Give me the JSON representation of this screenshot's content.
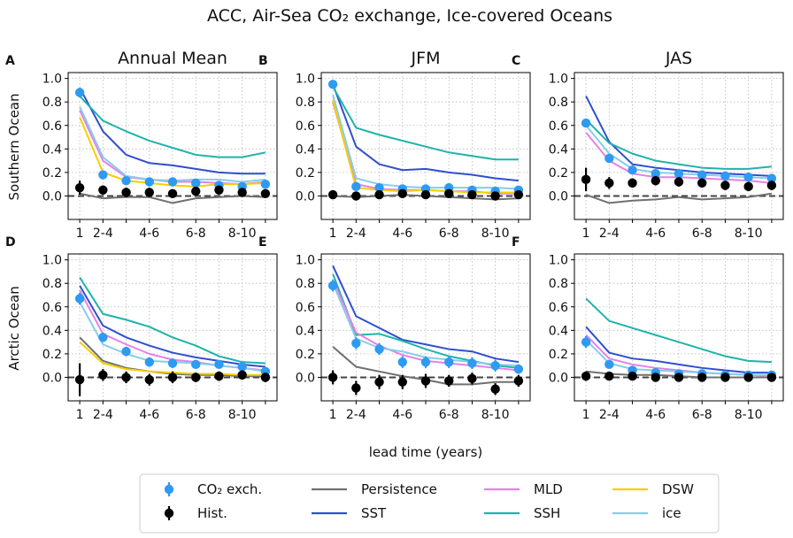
{
  "figure": {
    "title": "ACC, Air-Sea CO₂ exchange, Ice-covered Oceans",
    "xlabel": "lead time (years)",
    "row_labels": [
      "Southern Ocean",
      "Arctic Ocean"
    ],
    "col_titles": [
      "Annual Mean",
      "JFM",
      "JAS"
    ]
  },
  "legend": {
    "items": [
      {
        "key": "co2",
        "label": "CO₂ exch.",
        "kind": "errpoint",
        "color": "#2e9af2"
      },
      {
        "key": "hist",
        "label": "Hist.",
        "kind": "errpoint",
        "color": "#000000"
      },
      {
        "key": "persistence",
        "label": "Persistence",
        "kind": "line",
        "color": "#707070"
      },
      {
        "key": "sst",
        "label": "SST",
        "kind": "line",
        "color": "#2f4fcf"
      },
      {
        "key": "mld",
        "label": "MLD",
        "kind": "line",
        "color": "#e680e6"
      },
      {
        "key": "ssh",
        "label": "SSH",
        "kind": "line",
        "color": "#1fb3aa"
      },
      {
        "key": "dsw",
        "label": "DSW",
        "kind": "line",
        "color": "#f5cf00"
      },
      {
        "key": "ice",
        "label": "ice",
        "kind": "line",
        "color": "#86cde8"
      }
    ]
  },
  "chart_data": [
    {
      "type": "line",
      "panel": "A",
      "title": "Annual Mean",
      "ylabel": "Southern Ocean",
      "xlabel": "",
      "x": [
        1,
        2,
        3,
        4,
        5,
        6,
        7,
        8,
        9
      ],
      "xtick_labels": [
        "1",
        "2-4",
        "",
        "4-6",
        "",
        "6-8",
        "",
        "8-10",
        ""
      ],
      "xlim": [
        0.5,
        9.5
      ],
      "ylim": [
        -0.2,
        1.05
      ],
      "yticks": [
        0.0,
        0.2,
        0.4,
        0.6,
        0.8,
        1.0
      ],
      "grid": true,
      "series": [
        {
          "name": "Persistence",
          "key": "persistence",
          "values": [
            0.02,
            -0.02,
            -0.01,
            -0.01,
            -0.06,
            -0.02,
            -0.01,
            0.0,
            -0.01
          ]
        },
        {
          "name": "SST",
          "key": "sst",
          "values": [
            0.92,
            0.55,
            0.35,
            0.28,
            0.26,
            0.23,
            0.2,
            0.19,
            0.19
          ]
        },
        {
          "name": "SSH",
          "key": "ssh",
          "values": [
            0.85,
            0.64,
            0.55,
            0.47,
            0.41,
            0.35,
            0.33,
            0.33,
            0.37
          ]
        },
        {
          "name": "MLD",
          "key": "mld",
          "values": [
            0.73,
            0.3,
            0.16,
            0.14,
            0.12,
            0.12,
            0.11,
            0.1,
            0.12
          ]
        },
        {
          "name": "ice",
          "key": "ice",
          "values": [
            0.76,
            0.33,
            0.17,
            0.14,
            0.13,
            0.14,
            0.14,
            0.12,
            0.14
          ]
        },
        {
          "name": "DSW",
          "key": "dsw",
          "values": [
            0.67,
            0.2,
            0.13,
            0.11,
            0.09,
            0.08,
            0.1,
            0.1,
            0.11
          ]
        }
      ],
      "errpoints": [
        {
          "name": "CO₂ exch.",
          "key": "co2",
          "values": [
            0.88,
            0.18,
            0.13,
            0.12,
            0.12,
            0.11,
            0.09,
            0.08,
            0.1
          ],
          "err": [
            0.04,
            0.02,
            0.02,
            0.03,
            0.02,
            0.02,
            0.02,
            0.02,
            0.02
          ]
        },
        {
          "name": "Hist.",
          "key": "hist",
          "values": [
            0.07,
            0.05,
            0.03,
            0.03,
            0.02,
            0.04,
            0.05,
            0.03,
            0.02
          ],
          "err": [
            0.06,
            0.04,
            0.04,
            0.04,
            0.03,
            0.03,
            0.04,
            0.03,
            0.03
          ]
        }
      ]
    },
    {
      "type": "line",
      "panel": "B",
      "title": "JFM",
      "ylabel": "",
      "xlabel": "",
      "x": [
        1,
        2,
        3,
        4,
        5,
        6,
        7,
        8,
        9
      ],
      "xtick_labels": [
        "1",
        "2-4",
        "",
        "4-6",
        "",
        "6-8",
        "",
        "8-10",
        ""
      ],
      "xlim": [
        0.5,
        9.5
      ],
      "ylim": [
        -0.2,
        1.05
      ],
      "yticks": [
        0.0,
        0.2,
        0.4,
        0.6,
        0.8,
        1.0
      ],
      "grid": true,
      "series": [
        {
          "name": "Persistence",
          "key": "persistence",
          "values": [
            0.0,
            -0.01,
            0.0,
            0.01,
            0.0,
            -0.01,
            -0.02,
            -0.03,
            -0.02
          ]
        },
        {
          "name": "SST",
          "key": "sst",
          "values": [
            0.95,
            0.42,
            0.27,
            0.22,
            0.23,
            0.2,
            0.18,
            0.15,
            0.13
          ]
        },
        {
          "name": "SSH",
          "key": "ssh",
          "values": [
            0.93,
            0.58,
            0.52,
            0.47,
            0.42,
            0.37,
            0.34,
            0.31,
            0.31
          ]
        },
        {
          "name": "MLD",
          "key": "mld",
          "values": [
            0.8,
            0.1,
            0.06,
            0.05,
            0.05,
            0.04,
            0.04,
            0.02,
            0.02
          ]
        },
        {
          "name": "ice",
          "key": "ice",
          "values": [
            0.86,
            0.15,
            0.1,
            0.08,
            0.07,
            0.07,
            0.07,
            0.07,
            0.06
          ]
        },
        {
          "name": "DSW",
          "key": "dsw",
          "values": [
            0.82,
            0.07,
            0.05,
            0.04,
            0.05,
            0.04,
            0.03,
            0.03,
            0.03
          ]
        }
      ],
      "errpoints": [
        {
          "name": "CO₂ exch.",
          "key": "co2",
          "values": [
            0.95,
            0.08,
            0.07,
            0.06,
            0.06,
            0.07,
            0.05,
            0.04,
            0.05
          ],
          "err": [
            0.03,
            0.02,
            0.02,
            0.02,
            0.02,
            0.02,
            0.02,
            0.02,
            0.02
          ]
        },
        {
          "name": "Hist.",
          "key": "hist",
          "values": [
            0.01,
            0.0,
            0.01,
            0.02,
            0.01,
            0.02,
            0.01,
            0.0,
            0.01
          ],
          "err": [
            0.03,
            0.02,
            0.03,
            0.02,
            0.02,
            0.02,
            0.02,
            0.02,
            0.02
          ]
        }
      ]
    },
    {
      "type": "line",
      "panel": "C",
      "title": "JAS",
      "ylabel": "",
      "xlabel": "",
      "x": [
        1,
        2,
        3,
        4,
        5,
        6,
        7,
        8,
        9
      ],
      "xtick_labels": [
        "1",
        "2-4",
        "",
        "4-6",
        "",
        "6-8",
        "",
        "8-10",
        ""
      ],
      "xlim": [
        0.5,
        9.5
      ],
      "ylim": [
        -0.2,
        1.05
      ],
      "yticks": [
        0.0,
        0.2,
        0.4,
        0.6,
        0.8,
        1.0
      ],
      "grid": true,
      "series": [
        {
          "name": "Persistence",
          "key": "persistence",
          "values": [
            0.01,
            -0.06,
            -0.04,
            -0.03,
            -0.01,
            -0.03,
            -0.02,
            -0.01,
            0.02
          ]
        },
        {
          "name": "SST",
          "key": "sst",
          "values": [
            0.85,
            0.46,
            0.27,
            0.24,
            0.22,
            0.2,
            0.19,
            0.18,
            0.17
          ]
        },
        {
          "name": "SSH",
          "key": "ssh",
          "values": [
            0.65,
            0.45,
            0.36,
            0.3,
            0.27,
            0.24,
            0.23,
            0.23,
            0.25
          ]
        },
        {
          "name": "MLD",
          "key": "mld",
          "values": [
            0.54,
            0.3,
            0.19,
            0.16,
            0.16,
            0.15,
            0.14,
            0.13,
            0.11
          ]
        },
        {
          "name": "ice",
          "key": "ice",
          "values": [
            0.6,
            0.36,
            0.23,
            0.2,
            0.19,
            0.18,
            0.17,
            0.16,
            0.15
          ]
        }
      ],
      "errpoints": [
        {
          "name": "CO₂ exch.",
          "key": "co2",
          "values": [
            0.62,
            0.32,
            0.22,
            0.19,
            0.19,
            0.18,
            0.17,
            0.16,
            0.15
          ],
          "err": [
            0.03,
            0.03,
            0.03,
            0.02,
            0.02,
            0.02,
            0.02,
            0.02,
            0.02
          ]
        },
        {
          "name": "Hist.",
          "key": "hist",
          "values": [
            0.14,
            0.11,
            0.11,
            0.13,
            0.12,
            0.11,
            0.09,
            0.08,
            0.09
          ],
          "err": [
            0.1,
            0.05,
            0.04,
            0.04,
            0.04,
            0.04,
            0.04,
            0.04,
            0.04
          ]
        }
      ]
    },
    {
      "type": "line",
      "panel": "D",
      "title": "",
      "ylabel": "Arctic Ocean",
      "xlabel": "lead time (years)",
      "x": [
        1,
        2,
        3,
        4,
        5,
        6,
        7,
        8,
        9
      ],
      "xtick_labels": [
        "1",
        "2-4",
        "",
        "4-6",
        "",
        "6-8",
        "",
        "8-10",
        ""
      ],
      "xlim": [
        0.5,
        9.5
      ],
      "ylim": [
        -0.2,
        1.05
      ],
      "yticks": [
        0.0,
        0.2,
        0.4,
        0.6,
        0.8,
        1.0
      ],
      "grid": true,
      "series": [
        {
          "name": "Persistence",
          "key": "persistence",
          "values": [
            0.34,
            0.14,
            0.08,
            0.05,
            0.03,
            0.02,
            0.02,
            0.01,
            0.01
          ]
        },
        {
          "name": "SST",
          "key": "sst",
          "values": [
            0.78,
            0.44,
            0.34,
            0.27,
            0.21,
            0.17,
            0.14,
            0.11,
            0.09
          ]
        },
        {
          "name": "SSH",
          "key": "ssh",
          "values": [
            0.85,
            0.54,
            0.49,
            0.43,
            0.34,
            0.27,
            0.18,
            0.13,
            0.12
          ]
        },
        {
          "name": "MLD",
          "key": "mld",
          "values": [
            0.74,
            0.37,
            0.28,
            0.2,
            0.15,
            0.13,
            0.1,
            0.08,
            0.06
          ]
        },
        {
          "name": "ice",
          "key": "ice",
          "values": [
            0.64,
            0.28,
            0.2,
            0.14,
            0.13,
            0.12,
            0.1,
            0.08,
            0.05
          ]
        },
        {
          "name": "DSW",
          "key": "dsw",
          "values": [
            0.3,
            0.12,
            0.07,
            0.05,
            0.04,
            0.03,
            0.03,
            0.02,
            0.02
          ]
        }
      ],
      "errpoints": [
        {
          "name": "CO₂ exch.",
          "key": "co2",
          "values": [
            0.67,
            0.34,
            0.22,
            0.13,
            0.12,
            0.11,
            0.11,
            0.09,
            0.05
          ],
          "err": [
            0.05,
            0.04,
            0.04,
            0.04,
            0.04,
            0.03,
            0.03,
            0.03,
            0.03
          ]
        },
        {
          "name": "Hist.",
          "key": "hist",
          "values": [
            -0.02,
            0.02,
            0.0,
            -0.02,
            0.0,
            0.0,
            0.01,
            0.02,
            0.0
          ],
          "err": [
            0.14,
            0.05,
            0.05,
            0.05,
            0.05,
            0.04,
            0.04,
            0.04,
            0.04
          ]
        }
      ]
    },
    {
      "type": "line",
      "panel": "E",
      "title": "",
      "ylabel": "",
      "xlabel": "lead time (years)",
      "x": [
        1,
        2,
        3,
        4,
        5,
        6,
        7,
        8,
        9
      ],
      "xtick_labels": [
        "1",
        "2-4",
        "",
        "4-6",
        "",
        "6-8",
        "",
        "8-10",
        ""
      ],
      "xlim": [
        0.5,
        9.5
      ],
      "ylim": [
        -0.2,
        1.05
      ],
      "yticks": [
        0.0,
        0.2,
        0.4,
        0.6,
        0.8,
        1.0
      ],
      "grid": true,
      "series": [
        {
          "name": "Persistence",
          "key": "persistence",
          "values": [
            0.26,
            0.09,
            0.05,
            0.01,
            -0.02,
            -0.06,
            -0.06,
            -0.04,
            -0.04
          ]
        },
        {
          "name": "SST",
          "key": "sst",
          "values": [
            0.95,
            0.52,
            0.42,
            0.32,
            0.28,
            0.24,
            0.22,
            0.16,
            0.13
          ]
        },
        {
          "name": "SSH",
          "key": "ssh",
          "values": [
            0.88,
            0.36,
            0.37,
            0.31,
            0.24,
            0.18,
            0.14,
            0.1,
            0.08
          ]
        },
        {
          "name": "MLD",
          "key": "mld",
          "values": [
            0.83,
            0.38,
            0.27,
            0.19,
            0.14,
            0.12,
            0.1,
            0.08,
            0.06
          ]
        },
        {
          "name": "ice",
          "key": "ice",
          "values": [
            0.8,
            0.33,
            0.25,
            0.22,
            0.17,
            0.15,
            0.13,
            0.11,
            0.1
          ]
        }
      ],
      "errpoints": [
        {
          "name": "CO₂ exch.",
          "key": "co2",
          "values": [
            0.78,
            0.29,
            0.24,
            0.13,
            0.13,
            0.13,
            0.12,
            0.1,
            0.07
          ],
          "err": [
            0.05,
            0.05,
            0.05,
            0.05,
            0.05,
            0.05,
            0.05,
            0.05,
            0.04
          ]
        },
        {
          "name": "Hist.",
          "key": "hist",
          "values": [
            0.0,
            -0.09,
            -0.04,
            -0.04,
            -0.03,
            -0.03,
            -0.01,
            -0.1,
            -0.03
          ],
          "err": [
            0.06,
            0.06,
            0.06,
            0.06,
            0.06,
            0.05,
            0.05,
            0.05,
            0.05
          ]
        }
      ]
    },
    {
      "type": "line",
      "panel": "F",
      "title": "",
      "ylabel": "",
      "xlabel": "lead time (years)",
      "x": [
        1,
        2,
        3,
        4,
        5,
        6,
        7,
        8,
        9
      ],
      "xtick_labels": [
        "1",
        "2-4",
        "",
        "4-6",
        "",
        "6-8",
        "",
        "8-10",
        ""
      ],
      "xlim": [
        0.5,
        9.5
      ],
      "ylim": [
        -0.2,
        1.05
      ],
      "yticks": [
        0.0,
        0.2,
        0.4,
        0.6,
        0.8,
        1.0
      ],
      "grid": true,
      "series": [
        {
          "name": "Persistence",
          "key": "persistence",
          "values": [
            0.05,
            0.03,
            0.02,
            0.02,
            0.01,
            0.0,
            0.0,
            0.0,
            0.0
          ]
        },
        {
          "name": "SST",
          "key": "sst",
          "values": [
            0.43,
            0.21,
            0.16,
            0.14,
            0.11,
            0.08,
            0.06,
            0.04,
            0.04
          ]
        },
        {
          "name": "SSH",
          "key": "ssh",
          "values": [
            0.67,
            0.48,
            0.42,
            0.36,
            0.3,
            0.24,
            0.18,
            0.14,
            0.13
          ]
        },
        {
          "name": "MLD",
          "key": "mld",
          "values": [
            0.36,
            0.16,
            0.11,
            0.08,
            0.06,
            0.04,
            0.03,
            0.02,
            0.01
          ]
        },
        {
          "name": "ice",
          "key": "ice",
          "values": [
            0.32,
            0.12,
            0.07,
            0.06,
            0.05,
            0.04,
            0.03,
            0.02,
            0.02
          ]
        }
      ],
      "errpoints": [
        {
          "name": "CO₂ exch.",
          "key": "co2",
          "values": [
            0.3,
            0.11,
            0.06,
            0.04,
            0.03,
            0.03,
            0.02,
            0.02,
            0.02
          ],
          "err": [
            0.05,
            0.03,
            0.03,
            0.03,
            0.02,
            0.02,
            0.02,
            0.02,
            0.02
          ]
        },
        {
          "name": "Hist.",
          "key": "hist",
          "values": [
            0.01,
            0.01,
            0.01,
            0.0,
            0.0,
            0.0,
            0.0,
            0.0,
            0.0
          ],
          "err": [
            0.04,
            0.02,
            0.02,
            0.02,
            0.02,
            0.02,
            0.02,
            0.02,
            0.02
          ]
        }
      ]
    }
  ]
}
